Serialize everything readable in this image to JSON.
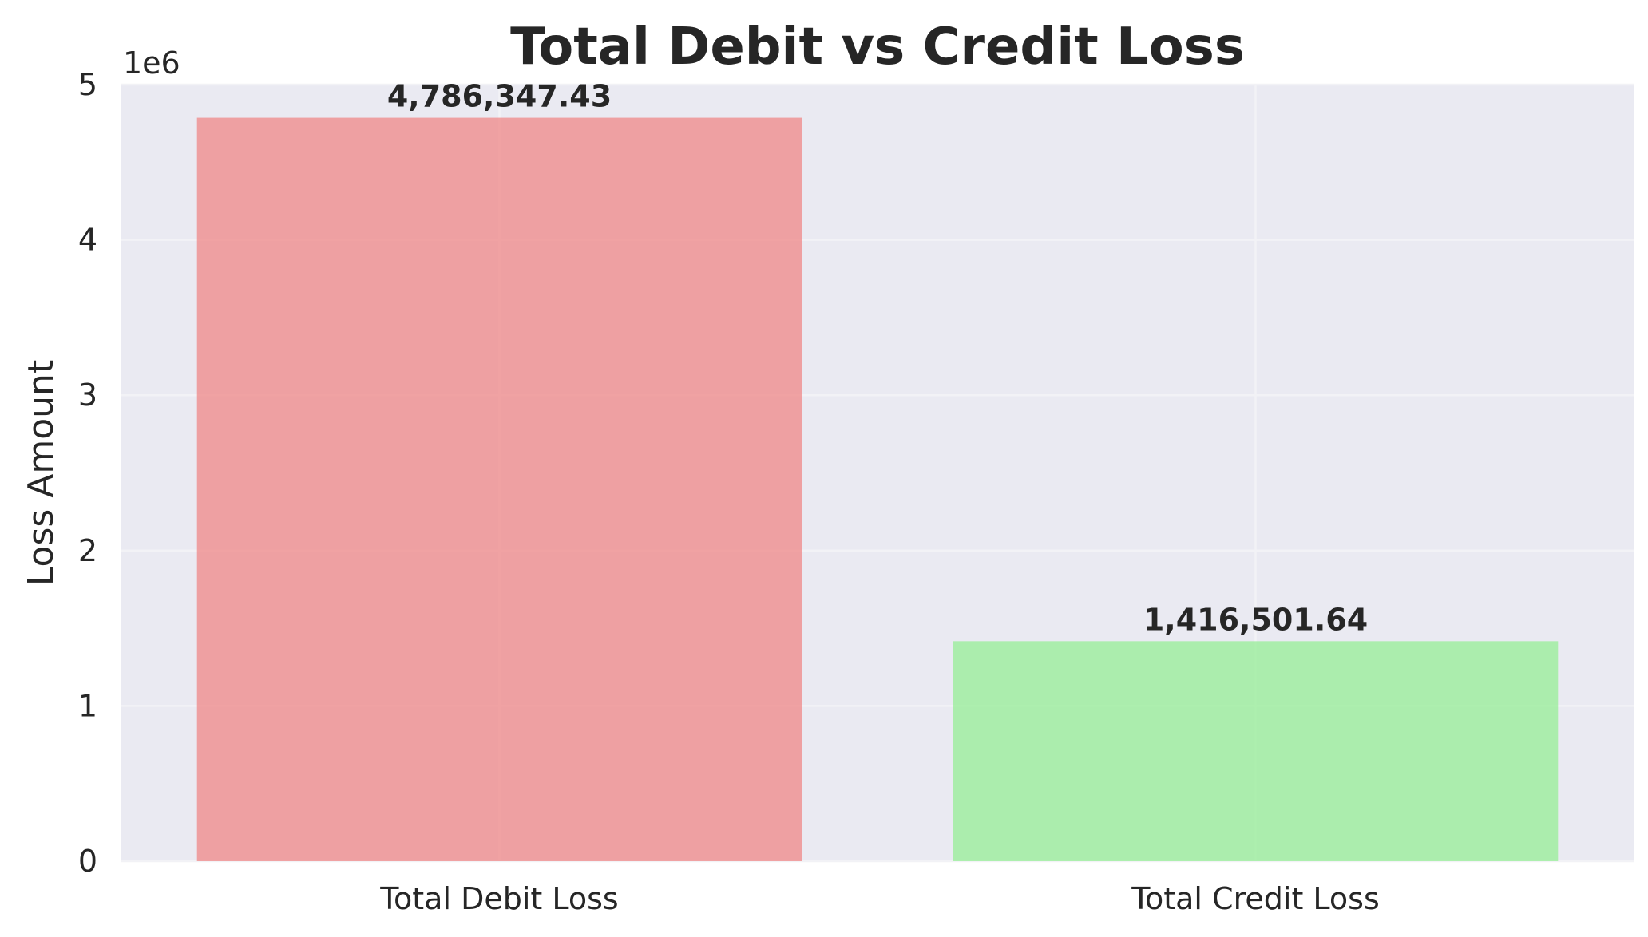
{
  "chart_data": {
    "type": "bar",
    "title": "Total Debit vs Credit Loss",
    "xlabel": "",
    "ylabel": "Loss Amount",
    "y_offset_label": "1e6",
    "categories": [
      "Total Debit Loss",
      "Total Credit Loss"
    ],
    "values": [
      4786347.43,
      1416501.64
    ],
    "value_labels": [
      "4,786,347.43",
      "1,416,501.64"
    ],
    "bar_colors": [
      "#f08080",
      "#90ee90"
    ],
    "bar_opacity": 0.7,
    "ylim": [
      0,
      5000000
    ],
    "y_ticks": [
      0,
      1000000,
      2000000,
      3000000,
      4000000,
      5000000
    ],
    "y_tick_labels": [
      "0",
      "1",
      "2",
      "3",
      "4",
      "5"
    ],
    "grid": true,
    "plot_background": "#eaeaf2"
  }
}
